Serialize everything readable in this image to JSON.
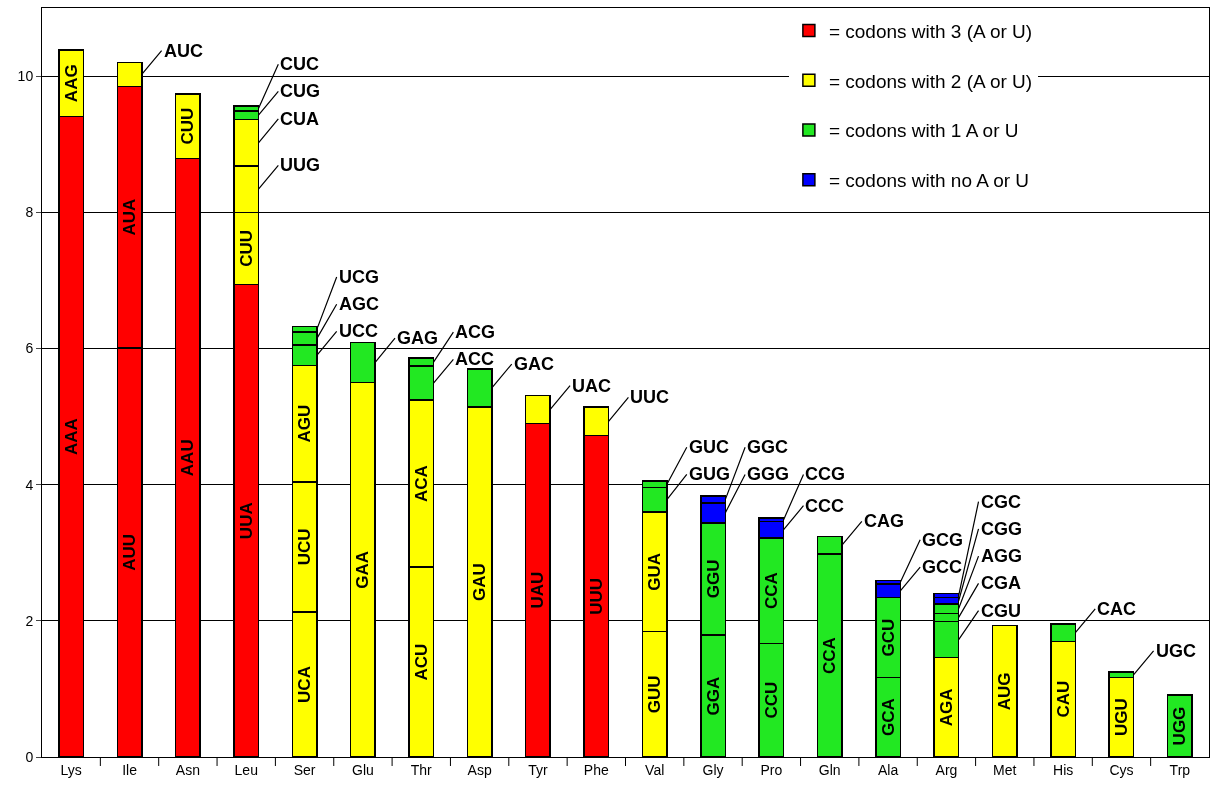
{
  "chart_data": {
    "type": "bar",
    "stacked": true,
    "categories": [
      "Lys",
      "Ile",
      "Asn",
      "Leu",
      "Ser",
      "Glu",
      "Thr",
      "Asp",
      "Tyr",
      "Phe",
      "Val",
      "Gly",
      "Pro",
      "Gln",
      "Ala",
      "Arg",
      "Met",
      "His",
      "Cys",
      "Trp"
    ],
    "ylim": [
      0,
      11
    ],
    "yticks": [
      0,
      2,
      4,
      6,
      8,
      10
    ],
    "grid": "y",
    "legend": "top right",
    "series": [
      {
        "name": "= codons with 3 (A or U)",
        "color": "#ff0000",
        "values": [
          9.41,
          6.01,
          8.79,
          6.94,
          null,
          null,
          null,
          null,
          4.9,
          4.72,
          null,
          null,
          null,
          null,
          null,
          null,
          null,
          null,
          null,
          null
        ],
        "value_labels": [
          "AAA",
          "AUU",
          "AAU",
          "UUA",
          null,
          null,
          null,
          null,
          "UAU",
          "UUU",
          null,
          null,
          null,
          null,
          null,
          null,
          null,
          null,
          null,
          null
        ]
      },
      {
        "color": "#ff0000",
        "values": [
          null,
          3.84,
          null,
          null,
          null,
          null,
          null,
          null,
          null,
          null,
          null,
          null,
          null,
          null,
          null,
          null,
          null,
          null,
          null,
          null
        ],
        "value_labels": [
          null,
          "AUA",
          null,
          null,
          null,
          null,
          null,
          null,
          null,
          null,
          null,
          null,
          null,
          null,
          null,
          null,
          null,
          null,
          null,
          null
        ]
      },
      {
        "name": "= codons with 2 (A or U)",
        "color": "#ffff00",
        "values": [
          0.97,
          0.35,
          0.95,
          1.06,
          2.13,
          5.5,
          2.79,
          5.14,
          0.41,
          0.42,
          1.84,
          null,
          null,
          null,
          null,
          1.46,
          1.93,
          1.7,
          1.17,
          null
        ],
        "value_labels": [
          "AAG",
          "AUC",
          "CUU",
          "CUU",
          "UCA",
          "GAA",
          "ACU",
          "GAU",
          "UAC",
          "UUC",
          "GUU",
          null,
          null,
          null,
          null,
          "AGA",
          "AUG",
          "CAU",
          "UGU",
          null
        ]
      },
      {
        "color": "#ffff00",
        "values": [
          null,
          null,
          null,
          0.68,
          1.91,
          null,
          2.45,
          null,
          null,
          null,
          1.76,
          null,
          null,
          null,
          null,
          null,
          null,
          null,
          null,
          null
        ],
        "value_labels": [
          null,
          null,
          null,
          "UUG",
          "UCU",
          null,
          "ACA",
          null,
          null,
          null,
          "GUA",
          null,
          null,
          null,
          null,
          null,
          null,
          null,
          null,
          null
        ]
      },
      {
        "color": "#ffff00",
        "values": [
          null,
          null,
          null,
          0.68,
          1.71,
          null,
          null,
          null,
          null,
          null,
          null,
          null,
          null,
          null,
          null,
          null,
          null,
          null,
          null,
          null
        ],
        "value_labels": [
          null,
          null,
          null,
          "CUA",
          "AGU",
          null,
          null,
          null,
          null,
          null,
          null,
          null,
          null,
          null,
          null,
          null,
          null,
          null,
          null,
          null
        ]
      },
      {
        "name": "= codons with 1 A or U",
        "color": "#22e822",
        "values": [
          null,
          null,
          null,
          0.13,
          0.3,
          0.59,
          0.5,
          0.56,
          null,
          null,
          0.36,
          1.79,
          1.67,
          2.98,
          1.17,
          0.53,
          null,
          0.25,
          0.08,
          0.91
        ],
        "value_labels": [
          null,
          null,
          null,
          "CUG",
          "UCC",
          "GAG",
          "ACC",
          "GAC",
          null,
          null,
          "GUG",
          "GGA",
          "CCU",
          "CCA",
          "GCA",
          "CGU",
          null,
          "CAC",
          "UGC",
          "UGG"
        ]
      },
      {
        "color": "#22e822",
        "values": [
          null,
          null,
          null,
          0.07,
          0.19,
          null,
          0.12,
          null,
          null,
          null,
          0.09,
          1.65,
          1.55,
          0.26,
          1.17,
          0.12,
          null,
          null,
          null,
          null
        ],
        "value_labels": [
          null,
          null,
          null,
          "CUC",
          "AGC",
          null,
          "ACG",
          null,
          null,
          null,
          "GUC",
          "GGU",
          "CCA",
          "CAG",
          "GCU",
          "CGA",
          null,
          null,
          null,
          null
        ]
      },
      {
        "color": "#22e822",
        "values": [
          null,
          null,
          null,
          null,
          0.08,
          null,
          null,
          null,
          null,
          null,
          null,
          null,
          null,
          null,
          null,
          0.14,
          null,
          null,
          null,
          null
        ],
        "value_labels": [
          null,
          null,
          null,
          null,
          "UCG",
          null,
          null,
          null,
          null,
          null,
          null,
          null,
          null,
          null,
          null,
          "AGG",
          null,
          null,
          null,
          null
        ]
      },
      {
        "name": "= codons with no A or U",
        "color": "#0000ff",
        "values": [
          null,
          null,
          null,
          null,
          null,
          null,
          null,
          null,
          null,
          null,
          null,
          0.29,
          0.24,
          null,
          0.2,
          0.09,
          null,
          null,
          null,
          null
        ],
        "value_labels": [
          null,
          null,
          null,
          null,
          null,
          null,
          null,
          null,
          null,
          null,
          null,
          "GGG",
          "CCC",
          null,
          "GCC",
          "CGG",
          null,
          null,
          null,
          null
        ]
      },
      {
        "color": "#0000ff",
        "values": [
          null,
          null,
          null,
          null,
          null,
          null,
          null,
          null,
          null,
          null,
          null,
          0.1,
          0.05,
          null,
          0.05,
          0.06,
          null,
          null,
          null,
          null
        ],
        "value_labels": [
          null,
          null,
          null,
          null,
          null,
          null,
          null,
          null,
          null,
          null,
          null,
          "GGC",
          "CCG",
          null,
          "GCG",
          "CGC",
          null,
          null,
          null,
          null
        ]
      }
    ]
  }
}
